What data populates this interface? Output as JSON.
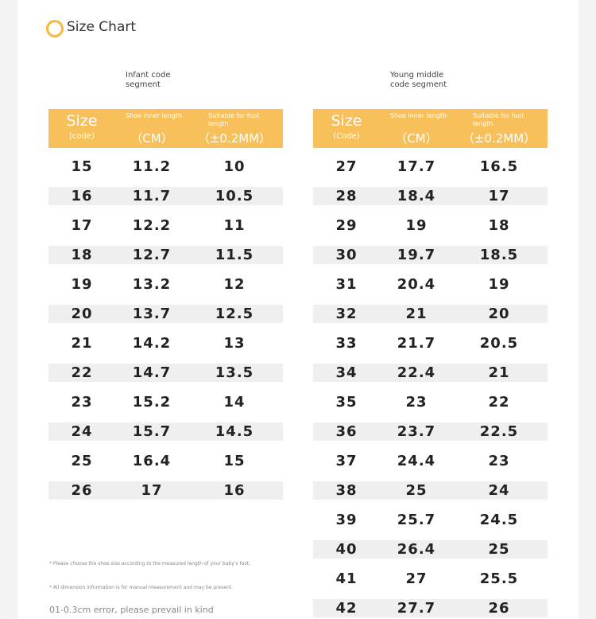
{
  "header": {
    "title": "Size Chart"
  },
  "tables": [
    {
      "caption": "Infant code segment",
      "columns": [
        {
          "label": "Size",
          "unit": "(code)"
        },
        {
          "label": "Shoe inner length",
          "unit": "（CM）"
        },
        {
          "label": "Suitable for foot length",
          "unit": "（±0.2MM）"
        }
      ],
      "rows": [
        [
          15,
          11.2,
          10
        ],
        [
          16,
          11.7,
          10.5
        ],
        [
          17,
          12.2,
          11
        ],
        [
          18,
          12.7,
          11.5
        ],
        [
          19,
          13.2,
          12
        ],
        [
          20,
          13.7,
          12.5
        ],
        [
          21,
          14.2,
          13
        ],
        [
          22,
          14.7,
          13.5
        ],
        [
          23,
          15.2,
          14
        ],
        [
          24,
          15.7,
          14.5
        ],
        [
          25,
          16.4,
          15
        ],
        [
          26,
          17,
          16
        ]
      ]
    },
    {
      "caption": "Young middle code segment",
      "columns": [
        {
          "label": "Size",
          "unit": "(Code)"
        },
        {
          "label": "Shoe inner length",
          "unit": "（CM）"
        },
        {
          "label": "Suitable for foot length",
          "unit": "（±0.2MM）"
        }
      ],
      "rows": [
        [
          27,
          17.7,
          16.5
        ],
        [
          28,
          18.4,
          17
        ],
        [
          29,
          19,
          18
        ],
        [
          30,
          19.7,
          18.5
        ],
        [
          31,
          20.4,
          19
        ],
        [
          32,
          21,
          20
        ],
        [
          33,
          21.7,
          20.5
        ],
        [
          34,
          22.4,
          21
        ],
        [
          35,
          23,
          22
        ],
        [
          36,
          23.7,
          22.5
        ],
        [
          37,
          24.4,
          23
        ],
        [
          38,
          25,
          24
        ],
        [
          39,
          25.7,
          24.5
        ],
        [
          40,
          26.4,
          25
        ],
        [
          41,
          27,
          25.5
        ],
        [
          42,
          27.7,
          26
        ]
      ]
    }
  ],
  "notes": [
    "* Please choose the shoe size according to the measured length of your baby's foot.",
    "* All dimension information is for manual measurement and may be present",
    "01-0.3cm error, please prevail in kind"
  ]
}
